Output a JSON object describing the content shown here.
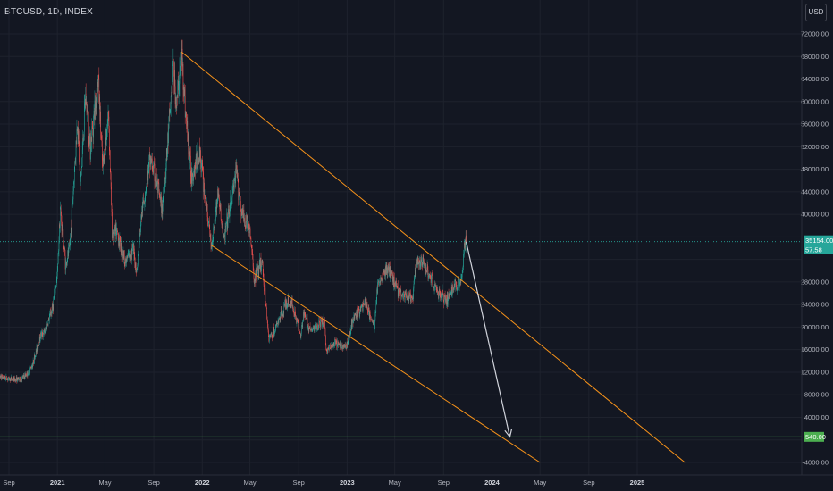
{
  "header": {
    "symbol": "BTCUSD, 1D, INDEX",
    "currency": "USD"
  },
  "colors": {
    "background": "#131722",
    "up": "#26a69a",
    "down": "#ef5350",
    "trendline": "#f7931a",
    "projection_arrow": "#d1d4dc",
    "support_line": "#4caf50",
    "price_line": "#26a69a"
  },
  "chart_data": {
    "type": "candlestick",
    "y_axis": {
      "min": -4000,
      "max": 72000,
      "ticks": [
        -4000,
        0,
        4000,
        8000,
        12000,
        16000,
        20000,
        24000,
        28000,
        32000,
        36000,
        40000,
        44000,
        48000,
        52000,
        56000,
        60000,
        64000,
        68000,
        72000
      ],
      "tick_labels": [
        "-4000.00",
        "",
        "4000.00",
        "8000.00",
        "12000.00",
        "16000.00",
        "20000.00",
        "24000.00",
        "28000.00",
        "",
        "",
        "40000.00",
        "44000.00",
        "48000.00",
        "52000.00",
        "56000.00",
        "60000.00",
        "64000.00",
        "68000.00",
        "72000.00"
      ],
      "scale": "linear"
    },
    "x_axis": {
      "labels": [
        {
          "text": "Sep",
          "date": "2020-09-01",
          "year": false
        },
        {
          "text": "2021",
          "date": "2021-01-01",
          "year": true
        },
        {
          "text": "May",
          "date": "2021-05-01",
          "year": false
        },
        {
          "text": "Sep",
          "date": "2021-09-01",
          "year": false
        },
        {
          "text": "2022",
          "date": "2022-01-01",
          "year": true
        },
        {
          "text": "May",
          "date": "2022-05-01",
          "year": false
        },
        {
          "text": "Sep",
          "date": "2022-09-01",
          "year": false
        },
        {
          "text": "2023",
          "date": "2023-01-01",
          "year": true
        },
        {
          "text": "May",
          "date": "2023-05-01",
          "year": false
        },
        {
          "text": "Sep",
          "date": "2023-09-01",
          "year": false
        },
        {
          "text": "2024",
          "date": "2024-01-01",
          "year": true
        },
        {
          "text": "May",
          "date": "2024-05-01",
          "year": false
        },
        {
          "text": "Sep",
          "date": "2024-09-01",
          "year": false
        },
        {
          "text": "2025",
          "date": "2025-01-01",
          "year": true
        }
      ]
    },
    "price_path": [
      [
        "2020-08-01",
        11400
      ],
      [
        "2020-09-01",
        10800
      ],
      [
        "2020-10-01",
        10700
      ],
      [
        "2020-10-20",
        11900
      ],
      [
        "2020-11-01",
        13700
      ],
      [
        "2020-11-20",
        18600
      ],
      [
        "2020-12-01",
        19200
      ],
      [
        "2020-12-20",
        23500
      ],
      [
        "2021-01-01",
        29300
      ],
      [
        "2021-01-08",
        41000
      ],
      [
        "2021-01-22",
        31000
      ],
      [
        "2021-02-01",
        34000
      ],
      [
        "2021-02-21",
        57000
      ],
      [
        "2021-02-28",
        45000
      ],
      [
        "2021-03-13",
        61000
      ],
      [
        "2021-03-25",
        52000
      ],
      [
        "2021-04-14",
        64000
      ],
      [
        "2021-04-25",
        48000
      ],
      [
        "2021-05-10",
        58000
      ],
      [
        "2021-05-19",
        37000
      ],
      [
        "2021-06-01",
        36500
      ],
      [
        "2021-06-22",
        31500
      ],
      [
        "2021-07-10",
        34000
      ],
      [
        "2021-07-20",
        29800
      ],
      [
        "2021-08-01",
        40000
      ],
      [
        "2021-08-23",
        49800
      ],
      [
        "2021-09-07",
        46000
      ],
      [
        "2021-09-21",
        40700
      ],
      [
        "2021-10-01",
        48000
      ],
      [
        "2021-10-20",
        66000
      ],
      [
        "2021-10-28",
        59000
      ],
      [
        "2021-11-10",
        68800
      ],
      [
        "2021-11-20",
        58000
      ],
      [
        "2021-12-04",
        47000
      ],
      [
        "2021-12-27",
        50800
      ],
      [
        "2022-01-10",
        41700
      ],
      [
        "2022-01-24",
        34500
      ],
      [
        "2022-02-10",
        44000
      ],
      [
        "2022-02-24",
        35200
      ],
      [
        "2022-03-28",
        47400
      ],
      [
        "2022-04-11",
        40000
      ],
      [
        "2022-04-30",
        37600
      ],
      [
        "2022-05-12",
        28500
      ],
      [
        "2022-06-01",
        31500
      ],
      [
        "2022-06-18",
        18000
      ],
      [
        "2022-07-01",
        19200
      ],
      [
        "2022-07-30",
        24000
      ],
      [
        "2022-08-14",
        24400
      ],
      [
        "2022-09-06",
        18800
      ],
      [
        "2022-09-13",
        22500
      ],
      [
        "2022-10-01",
        19300
      ],
      [
        "2022-11-05",
        21300
      ],
      [
        "2022-11-09",
        15800
      ],
      [
        "2022-12-01",
        17000
      ],
      [
        "2022-12-30",
        16500
      ],
      [
        "2023-01-14",
        21000
      ],
      [
        "2023-02-15",
        24500
      ],
      [
        "2023-03-10",
        20000
      ],
      [
        "2023-03-20",
        28000
      ],
      [
        "2023-04-14",
        30500
      ],
      [
        "2023-05-12",
        26200
      ],
      [
        "2023-06-15",
        25000
      ],
      [
        "2023-06-23",
        30800
      ],
      [
        "2023-07-13",
        31500
      ],
      [
        "2023-08-17",
        26000
      ],
      [
        "2023-09-11",
        25000
      ],
      [
        "2023-10-01",
        27500
      ],
      [
        "2023-10-16",
        28500
      ],
      [
        "2023-10-24",
        34500
      ],
      [
        "2023-10-28",
        35154
      ]
    ],
    "last_price": 35154,
    "price_badge": {
      "price": "35154.00",
      "change": "57.58"
    },
    "drawings": {
      "upper_trendline": {
        "from": [
          "2021-11-10",
          68800
        ],
        "to": [
          "2025-05-01",
          -4000
        ]
      },
      "lower_trendline": {
        "from": [
          "2022-01-24",
          34500
        ],
        "to": [
          "2024-05-01",
          -4000
        ]
      },
      "projection_arrow": {
        "from": [
          "2023-10-28",
          35154
        ],
        "to": [
          "2024-02-15",
          540
        ]
      },
      "support_line": {
        "price": 540,
        "label": "540.00"
      }
    }
  }
}
